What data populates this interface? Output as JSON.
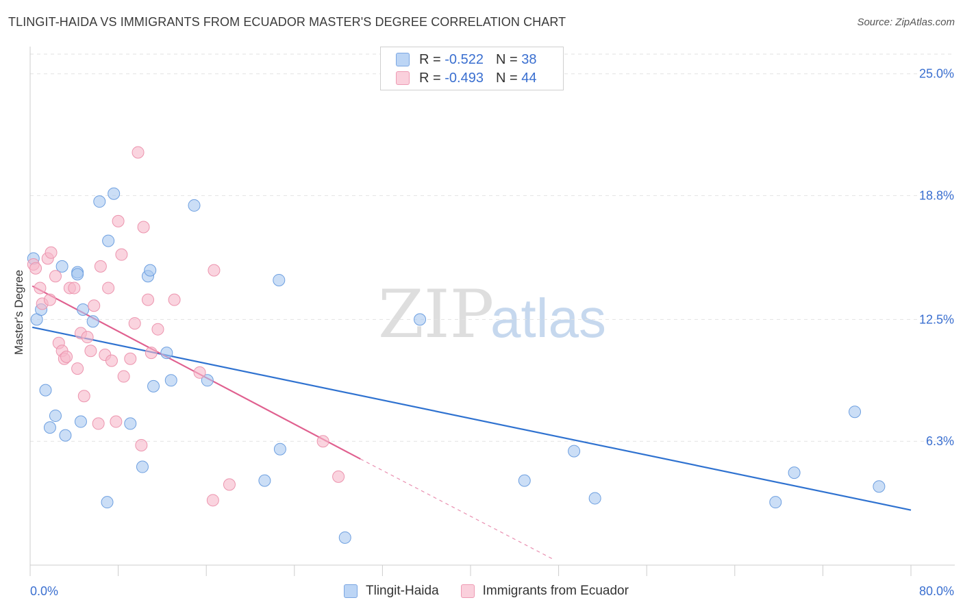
{
  "header": {
    "title": "TLINGIT-HAIDA VS IMMIGRANTS FROM ECUADOR MASTER'S DEGREE CORRELATION CHART",
    "source": "Source: ZipAtlas.com"
  },
  "legend": {
    "r_label": "R =",
    "n_label": "N =",
    "rows": [
      {
        "r": "-0.522",
        "n": "38",
        "color": "#a8c8f0"
      },
      {
        "r": "-0.493",
        "n": "44",
        "color": "#f6b8ca"
      }
    ]
  },
  "watermark": {
    "zip": "ZIP",
    "atlas": "atlas"
  },
  "chart_data": {
    "type": "scatter",
    "title": "TLINGIT-HAIDA VS IMMIGRANTS FROM ECUADOR MASTER'S DEGREE CORRELATION CHART",
    "xlabel": "",
    "ylabel": "Master's Degree",
    "xlim": [
      0,
      80
    ],
    "ylim": [
      0,
      26
    ],
    "x_tick_labels": [
      "0.0%",
      "80.0%"
    ],
    "y_ticks": [
      6.3,
      12.5,
      18.8,
      25.0
    ],
    "y_tick_labels": [
      "6.3%",
      "12.5%",
      "18.8%",
      "25.0%"
    ],
    "grid": true,
    "legend_position": "bottom-center",
    "series": [
      {
        "name": "Tlingit-Haida",
        "color": "#a8c8f0",
        "stroke": "#6d9fe0",
        "line_color": "#2f72d0",
        "trend": {
          "x1": 0.2,
          "y1": 12.1,
          "x2": 80.0,
          "y2": 2.8
        },
        "points": [
          [
            0.3,
            15.6
          ],
          [
            0.6,
            12.5
          ],
          [
            1.0,
            13.0
          ],
          [
            1.4,
            8.9
          ],
          [
            1.8,
            7.0
          ],
          [
            2.3,
            7.6
          ],
          [
            2.9,
            15.2
          ],
          [
            3.2,
            6.6
          ],
          [
            4.3,
            14.9
          ],
          [
            4.6,
            7.3
          ],
          [
            4.8,
            13.0
          ],
          [
            5.7,
            12.4
          ],
          [
            6.3,
            18.5
          ],
          [
            7.0,
            3.2
          ],
          [
            7.1,
            16.5
          ],
          [
            7.6,
            18.9
          ],
          [
            9.1,
            7.2
          ],
          [
            10.2,
            5.0
          ],
          [
            10.7,
            14.7
          ],
          [
            10.9,
            15.0
          ],
          [
            11.2,
            9.1
          ],
          [
            12.4,
            10.8
          ],
          [
            12.8,
            9.4
          ],
          [
            14.9,
            18.3
          ],
          [
            16.1,
            9.4
          ],
          [
            21.3,
            4.3
          ],
          [
            22.6,
            14.5
          ],
          [
            22.7,
            5.9
          ],
          [
            28.6,
            1.4
          ],
          [
            35.4,
            12.5
          ],
          [
            44.9,
            4.3
          ],
          [
            49.4,
            5.8
          ],
          [
            51.3,
            3.4
          ],
          [
            67.7,
            3.2
          ],
          [
            69.4,
            4.7
          ],
          [
            74.9,
            7.8
          ],
          [
            77.1,
            4.0
          ],
          [
            4.3,
            14.8
          ]
        ]
      },
      {
        "name": "Immigrants from Ecuador",
        "color": "#f6b8ca",
        "stroke": "#ec94ae",
        "line_color": "#e0608f",
        "trend": {
          "x1": 0.2,
          "y1": 14.2,
          "x2": 30.0,
          "y2": 5.4
        },
        "trend_dashed_to": {
          "x": 47.5,
          "y": 0.3
        },
        "points": [
          [
            0.3,
            15.3
          ],
          [
            0.5,
            15.1
          ],
          [
            0.9,
            14.1
          ],
          [
            1.1,
            13.3
          ],
          [
            1.6,
            15.6
          ],
          [
            1.8,
            13.5
          ],
          [
            1.9,
            15.9
          ],
          [
            2.3,
            14.7
          ],
          [
            2.6,
            11.3
          ],
          [
            2.9,
            10.9
          ],
          [
            3.1,
            10.5
          ],
          [
            3.3,
            10.6
          ],
          [
            3.6,
            14.1
          ],
          [
            4.0,
            14.1
          ],
          [
            4.3,
            10.0
          ],
          [
            4.6,
            11.8
          ],
          [
            4.9,
            8.6
          ],
          [
            5.2,
            11.6
          ],
          [
            5.5,
            10.9
          ],
          [
            5.8,
            13.2
          ],
          [
            6.2,
            7.2
          ],
          [
            6.4,
            15.2
          ],
          [
            6.8,
            10.7
          ],
          [
            7.1,
            14.1
          ],
          [
            7.4,
            10.4
          ],
          [
            7.8,
            7.3
          ],
          [
            8.0,
            17.5
          ],
          [
            8.3,
            15.8
          ],
          [
            8.5,
            9.6
          ],
          [
            9.1,
            10.5
          ],
          [
            9.5,
            12.3
          ],
          [
            9.8,
            21.0
          ],
          [
            10.1,
            6.1
          ],
          [
            10.3,
            17.2
          ],
          [
            10.7,
            13.5
          ],
          [
            11.0,
            10.8
          ],
          [
            11.6,
            12.0
          ],
          [
            13.1,
            13.5
          ],
          [
            15.4,
            9.8
          ],
          [
            16.6,
            3.3
          ],
          [
            16.7,
            15.0
          ],
          [
            18.1,
            4.1
          ],
          [
            26.6,
            6.3
          ],
          [
            28.0,
            4.5
          ]
        ]
      }
    ],
    "bottom_legend": [
      "Tlingit-Haida",
      "Immigrants from Ecuador"
    ]
  }
}
